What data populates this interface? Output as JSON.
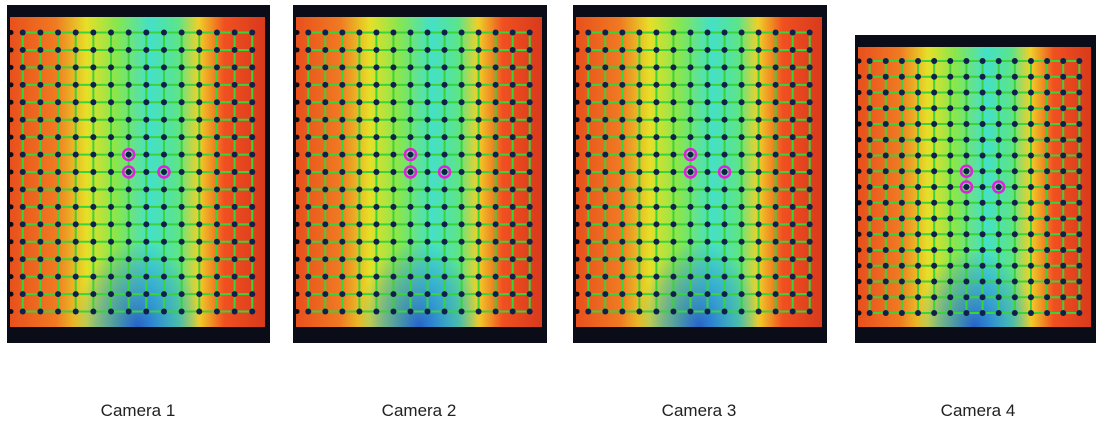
{
  "panels": [
    {
      "caption": "Camera 1"
    },
    {
      "caption": "Camera 2"
    },
    {
      "caption": "Camera 3"
    },
    {
      "caption": "Camera 4"
    }
  ]
}
